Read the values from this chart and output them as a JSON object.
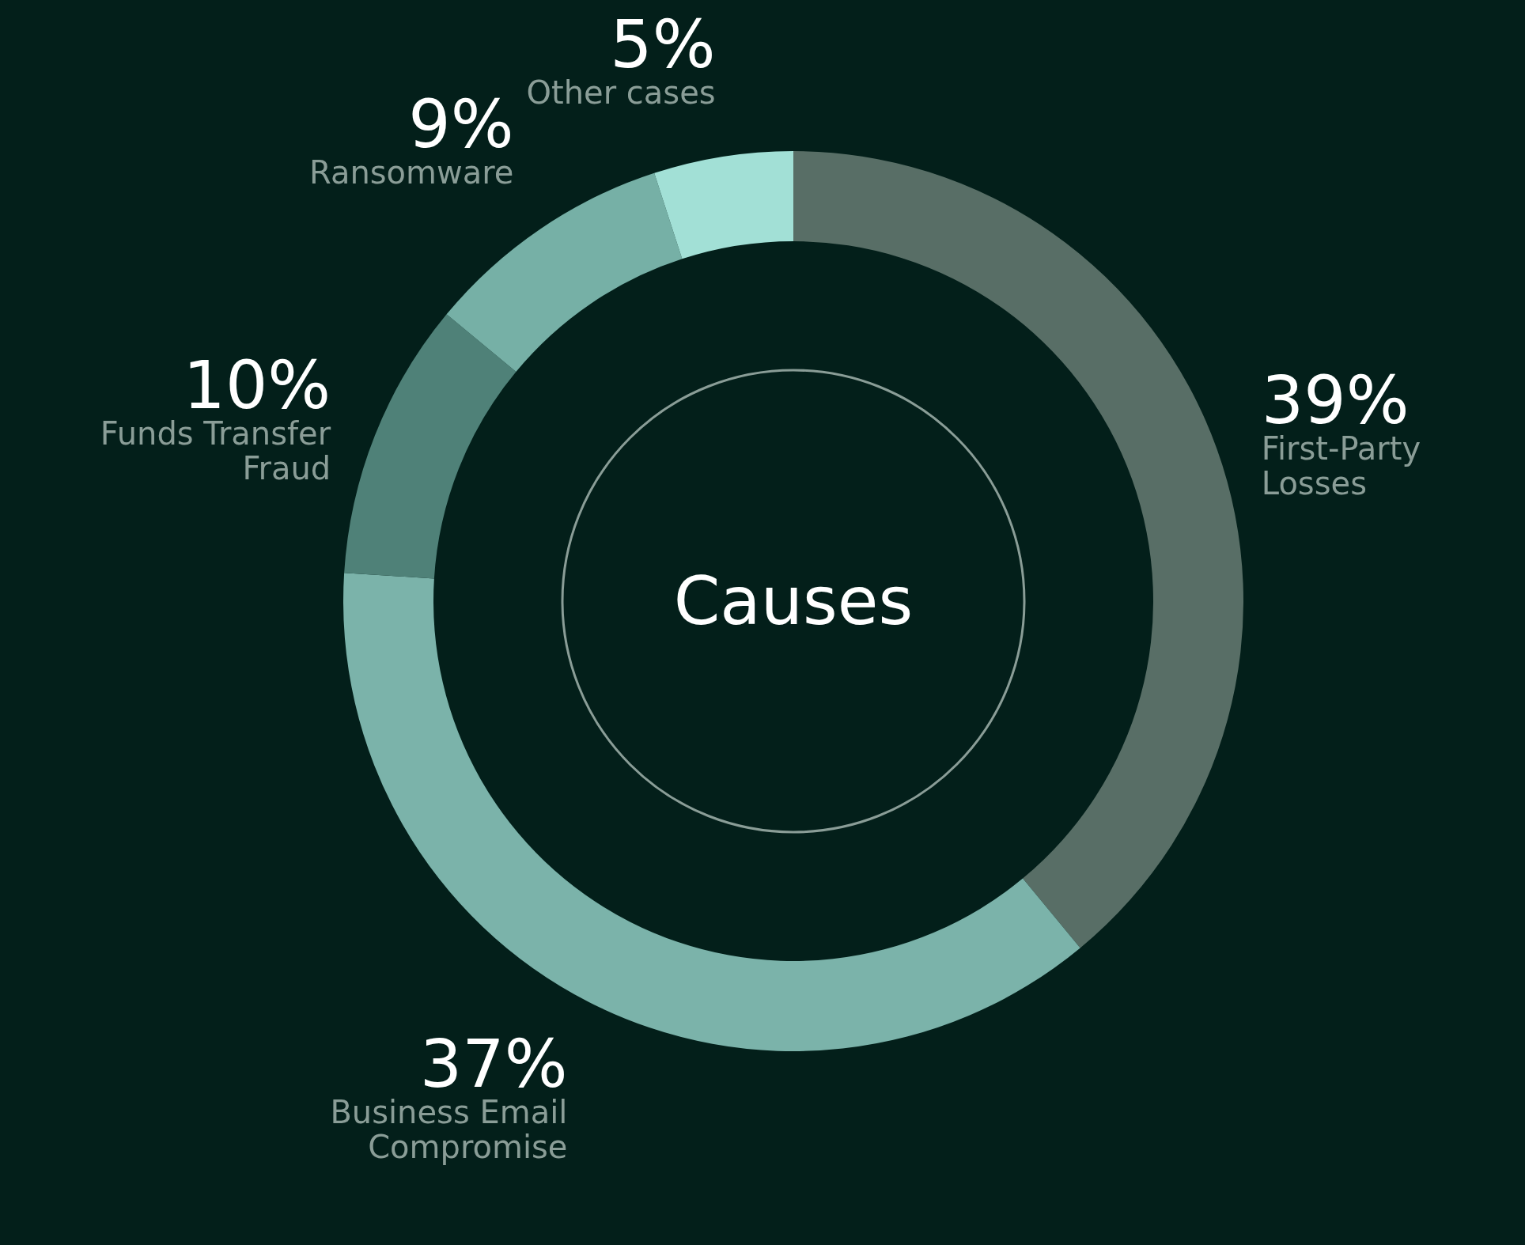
{
  "chart_data": {
    "type": "donut",
    "title": "Causes",
    "categories": [
      "First-Party Losses",
      "Business Email Compromise",
      "Funds Transfer Fraud",
      "Ransomware",
      "Other cases"
    ],
    "values": [
      39,
      37,
      10,
      9,
      5
    ],
    "value_labels": [
      "39%",
      "37%",
      "10%",
      "9%",
      "5%"
    ],
    "colors": [
      "#586e66",
      "#7bb3aa",
      "#4f8178",
      "#76b0a6",
      "#a2e0d6"
    ],
    "legend": false
  }
}
